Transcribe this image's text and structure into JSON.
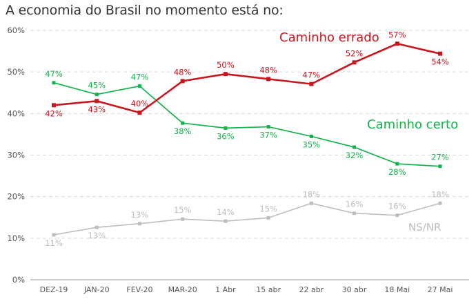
{
  "chart_data": {
    "type": "line",
    "title": "A economia do Brasil no momento está no:",
    "xlabel": "",
    "ylabel": "",
    "ylim": [
      0,
      60
    ],
    "yticks": [
      0,
      10,
      20,
      30,
      40,
      50,
      60
    ],
    "ytick_labels": [
      "0%",
      "10%",
      "20%",
      "30%",
      "40%",
      "50%",
      "60%"
    ],
    "grid": true,
    "categories": [
      "DEZ-19",
      "JAN-20",
      "FEV-20",
      "MAR-20",
      "1 Abr",
      "15 abr",
      "22 abr",
      "30 abr",
      "18 Mai",
      "27 Mai"
    ],
    "series": [
      {
        "name": "Caminho errado",
        "color": "#c8161d",
        "values": [
          42,
          43,
          40,
          48,
          50,
          48,
          47,
          52,
          57,
          54
        ],
        "plot_values": [
          42.0,
          43.0,
          40.2,
          47.8,
          49.5,
          48.3,
          47.1,
          52.3,
          56.8,
          54.4
        ],
        "labels": [
          "42%",
          "43%",
          "40%",
          "48%",
          "50%",
          "48%",
          "47%",
          "52%",
          "57%",
          "54%"
        ]
      },
      {
        "name": "Caminho certo",
        "color": "#13b24a",
        "values": [
          47,
          45,
          47,
          38,
          36,
          37,
          35,
          32,
          28,
          27
        ],
        "plot_values": [
          47.4,
          44.6,
          46.6,
          37.7,
          36.5,
          36.8,
          34.5,
          31.9,
          27.9,
          27.3
        ],
        "labels": [
          "47%",
          "45%",
          "47%",
          "38%",
          "36%",
          "37%",
          "35%",
          "32%",
          "28%",
          "27%"
        ]
      },
      {
        "name": "NS/NR",
        "color": "#bdbdbd",
        "values": [
          11,
          13,
          13,
          15,
          14,
          15,
          18,
          16,
          16,
          18
        ],
        "plot_values": [
          10.8,
          12.6,
          13.5,
          14.6,
          14.1,
          14.9,
          18.4,
          16.0,
          15.5,
          18.4
        ],
        "labels": [
          "11%",
          "13%",
          "13%",
          "15%",
          "14%",
          "15%",
          "18%",
          "16%",
          "16%",
          "18%"
        ]
      }
    ]
  }
}
